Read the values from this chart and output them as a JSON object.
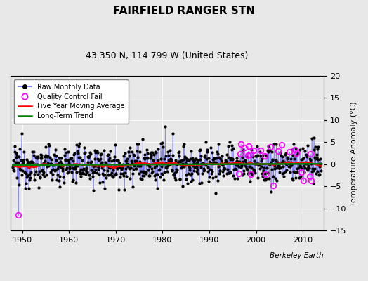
{
  "title": "FAIRFIELD RANGER STN",
  "subtitle": "43.350 N, 114.799 W (United States)",
  "ylabel": "Temperature Anomaly (°C)",
  "xlabel_bottom": "Berkeley Earth",
  "ylim": [
    -15,
    20
  ],
  "yticks": [
    -15,
    -10,
    -5,
    0,
    5,
    10,
    15,
    20
  ],
  "xlim": [
    1947.5,
    2014.5
  ],
  "xticks": [
    1950,
    1960,
    1970,
    1980,
    1990,
    2000,
    2010
  ],
  "background_color": "#e8e8e8",
  "raw_line_color": "#6666ff",
  "raw_marker_color": "black",
  "qc_fail_color": "magenta",
  "moving_avg_color": "red",
  "trend_color": "green",
  "seed": 12345,
  "n_months": 792,
  "start_year": 1948.0,
  "trend_slope": 0.00035,
  "trend_intercept": -0.15,
  "moving_avg_window": 60,
  "noise_std": 2.2
}
